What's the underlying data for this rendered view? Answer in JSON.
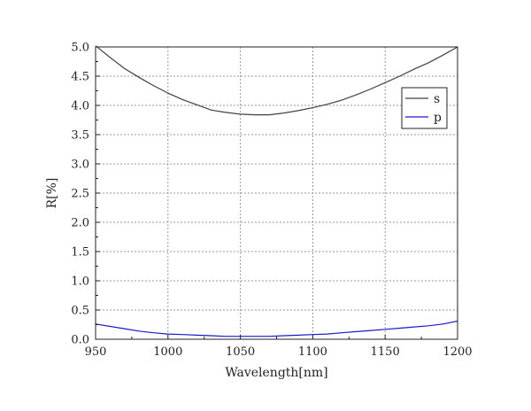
{
  "chart_data": {
    "type": "line",
    "title": "",
    "xlabel": "Wavelength[nm]",
    "ylabel": "R[%]",
    "xlim": [
      950,
      1200
    ],
    "ylim": [
      0.0,
      5.0
    ],
    "xticks": [
      "950",
      "1000",
      "1050",
      "1100",
      "1150",
      "1200"
    ],
    "yticks": [
      "0.0",
      "0.5",
      "1.0",
      "1.5",
      "2.0",
      "2.5",
      "3.0",
      "3.5",
      "4.0",
      "4.5",
      "5.0"
    ],
    "grid": true,
    "legend_position": "top-right",
    "series": [
      {
        "name": "s",
        "color": "#404040",
        "x": [
          950,
          960,
          970,
          980,
          990,
          1000,
          1010,
          1020,
          1030,
          1040,
          1050,
          1060,
          1070,
          1080,
          1090,
          1100,
          1110,
          1120,
          1130,
          1140,
          1150,
          1160,
          1170,
          1180,
          1190,
          1200
        ],
        "y": [
          5.02,
          4.82,
          4.63,
          4.48,
          4.34,
          4.21,
          4.1,
          4.01,
          3.92,
          3.88,
          3.85,
          3.84,
          3.84,
          3.87,
          3.91,
          3.96,
          4.02,
          4.09,
          4.18,
          4.28,
          4.39,
          4.5,
          4.62,
          4.73,
          4.86,
          5.0
        ]
      },
      {
        "name": "p",
        "color": "#1a1acc",
        "x": [
          950,
          960,
          970,
          980,
          990,
          1000,
          1010,
          1020,
          1030,
          1040,
          1050,
          1060,
          1070,
          1080,
          1090,
          1100,
          1110,
          1120,
          1130,
          1140,
          1150,
          1160,
          1170,
          1180,
          1190,
          1200
        ],
        "y": [
          0.26,
          0.22,
          0.18,
          0.14,
          0.11,
          0.09,
          0.08,
          0.07,
          0.06,
          0.05,
          0.05,
          0.05,
          0.05,
          0.06,
          0.07,
          0.08,
          0.09,
          0.11,
          0.13,
          0.15,
          0.17,
          0.19,
          0.21,
          0.23,
          0.26,
          0.31
        ]
      }
    ]
  }
}
